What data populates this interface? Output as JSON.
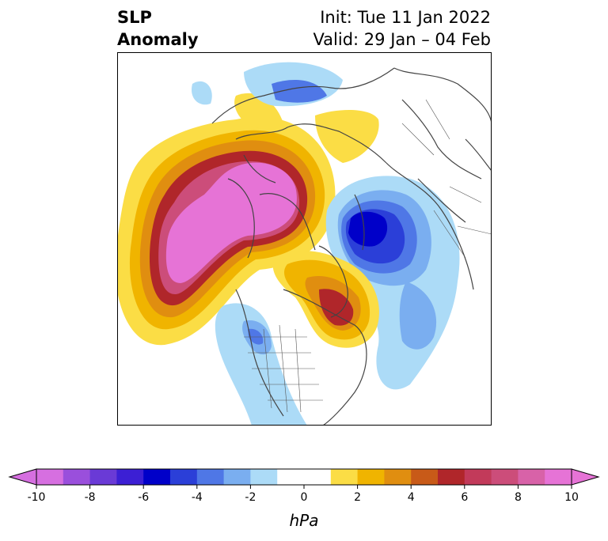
{
  "title": {
    "left_line1": "SLP",
    "left_line2": "Anomaly",
    "right_line1": "Init: Tue 11 Jan 2022",
    "right_line2": "Valid: 29 Jan – 04 Feb"
  },
  "colorbar": {
    "unit": "hPa",
    "tick_labels": [
      "-10",
      "-8",
      "-6",
      "-4",
      "-2",
      "0",
      "2",
      "4",
      "6",
      "8",
      "10"
    ],
    "range": [
      -10,
      10
    ],
    "bin_size": 1,
    "colors": [
      "#d66fe0",
      "#9a4fdc",
      "#6a3ad6",
      "#3c1fd4",
      "#0000c9",
      "#2b3fd8",
      "#4f77e6",
      "#7aaef0",
      "#acdbf7",
      "#ffffff",
      "#ffffff",
      "#fbdd45",
      "#f0b400",
      "#e08e10",
      "#c85a18",
      "#b0262a",
      "#c23a5a",
      "#cc4d7a",
      "#d862a8",
      "#e673d6"
    ]
  },
  "map": {
    "projection": "polar-stereographic",
    "features": [
      "positive-anomaly-north-pacific-alaska",
      "negative-anomaly-eastern-siberia",
      "positive-anomaly-greenland-northeast-canada",
      "negative-anomaly-western-us"
    ]
  }
}
